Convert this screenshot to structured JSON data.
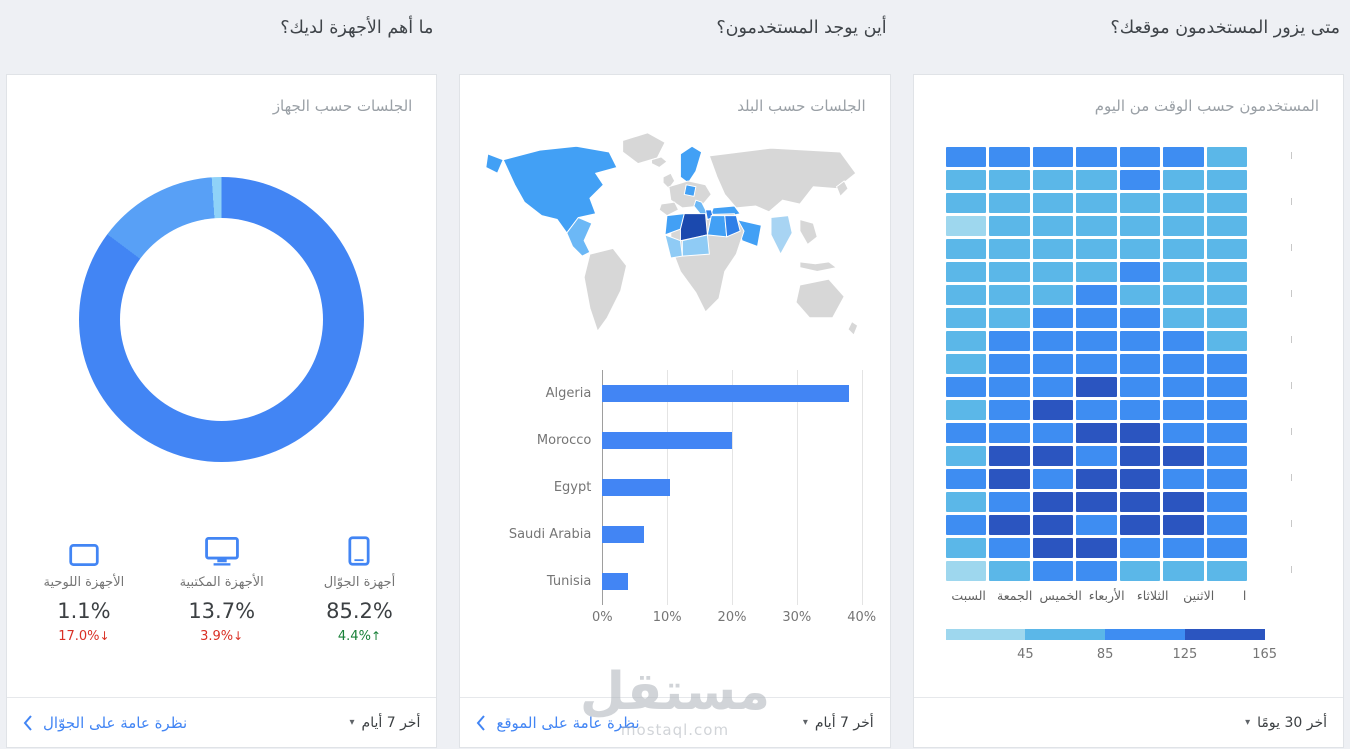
{
  "watermark": {
    "title": "مستقل",
    "url": "mostaql.com"
  },
  "cards": {
    "devices": {
      "question": "ما أهم الأجهزة لديك؟",
      "subtitle": "الجلسات حسب الجهاز",
      "stats": [
        {
          "icon": "mobile-icon",
          "label": "أجهزة الجوّال",
          "value": "85.2%",
          "change": "4.4%",
          "trend": "up"
        },
        {
          "icon": "desktop-icon",
          "label": "الأجهزة المكتبية",
          "value": "13.7%",
          "change": "3.9%",
          "trend": "down"
        },
        {
          "icon": "tablet-icon",
          "label": "الأجهزة اللوحية",
          "value": "1.1%",
          "change": "17.0%",
          "trend": "down"
        }
      ],
      "footer_link": "نظرة عامة على الجوّال",
      "footer_range": "أخر 7 أيام"
    },
    "countries": {
      "question": "أين يوجد المستخدمون؟",
      "subtitle": "الجلسات حسب البلد",
      "footer_link": "نظرة عامة على الموقع",
      "footer_range": "أخر 7 أيام",
      "map_highlighted_countries": [
        "Canada",
        "United States",
        "Mexico",
        "Sweden",
        "Germany",
        "Italy",
        "Turkey",
        "Saudi Arabia",
        "Morocco",
        "Algeria",
        "Tunisia",
        "Libya",
        "Egypt",
        "Mauritania",
        "Mali",
        "Niger",
        "India"
      ]
    },
    "time": {
      "question": "متى يزور المستخدمون موقعك؟",
      "subtitle": "المستخدمون حسب الوقت من اليوم",
      "footer_range": "أخر 30 يومًا"
    }
  },
  "chart_data": [
    {
      "id": "device-donut",
      "type": "pie",
      "title": "الجلسات حسب الجهاز",
      "labels": [
        "أجهزة الجوّال",
        "الأجهزة المكتبية",
        "الأجهزة اللوحية"
      ],
      "values": [
        85.2,
        13.7,
        1.1
      ],
      "colors": [
        "#4285f4",
        "#58a0f6",
        "#8fd2f8"
      ]
    },
    {
      "id": "country-bars",
      "type": "bar",
      "title": "الجلسات حسب البلد",
      "categories": [
        "Algeria",
        "Morocco",
        "Egypt",
        "Saudi Arabia",
        "Tunisia"
      ],
      "values": [
        38,
        20,
        10.5,
        6.5,
        4
      ],
      "xlim": [
        0,
        40
      ],
      "x_ticks": [
        "0%",
        "10%",
        "20%",
        "30%",
        "40%"
      ],
      "bar_color": "#4285f4"
    },
    {
      "id": "time-heatmap",
      "type": "heatmap",
      "title": "المستخدمون حسب الوقت من اليوم",
      "columns": [
        "السبت",
        "الجمعة",
        "الخميس",
        "الأربعاء",
        "الثلاثاء",
        "الاثنين",
        "ا"
      ],
      "palette": [
        "#9ed7ee",
        "#5bb7e8",
        "#3e8df2",
        "#2b55c0"
      ],
      "legend_labels": [
        "45",
        "85",
        "125",
        "165"
      ],
      "hour_tick": "ا",
      "grid": [
        [
          2,
          2,
          2,
          2,
          2,
          2,
          1
        ],
        [
          1,
          1,
          1,
          1,
          2,
          1,
          1
        ],
        [
          1,
          1,
          1,
          1,
          1,
          1,
          1
        ],
        [
          0,
          1,
          1,
          1,
          1,
          1,
          1
        ],
        [
          1,
          1,
          1,
          1,
          1,
          1,
          1
        ],
        [
          1,
          1,
          1,
          1,
          2,
          1,
          1
        ],
        [
          1,
          1,
          1,
          2,
          1,
          1,
          1
        ],
        [
          1,
          1,
          2,
          2,
          2,
          1,
          1
        ],
        [
          1,
          2,
          2,
          2,
          2,
          2,
          1
        ],
        [
          1,
          2,
          2,
          2,
          2,
          2,
          2
        ],
        [
          2,
          2,
          2,
          3,
          2,
          2,
          2
        ],
        [
          1,
          2,
          3,
          2,
          2,
          2,
          2
        ],
        [
          2,
          2,
          2,
          3,
          3,
          2,
          2
        ],
        [
          1,
          3,
          3,
          2,
          3,
          3,
          2
        ],
        [
          2,
          3,
          2,
          3,
          3,
          2,
          2
        ],
        [
          1,
          2,
          3,
          3,
          3,
          3,
          2
        ],
        [
          2,
          3,
          3,
          2,
          3,
          3,
          2
        ],
        [
          1,
          2,
          3,
          3,
          2,
          2,
          2
        ],
        [
          0,
          1,
          2,
          2,
          1,
          1,
          1
        ]
      ]
    }
  ]
}
